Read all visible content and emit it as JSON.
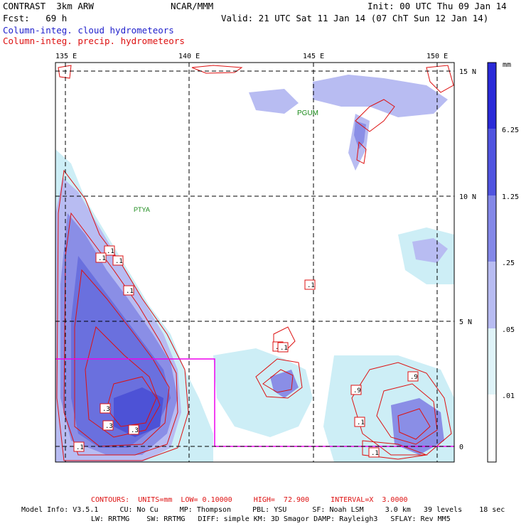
{
  "header": {
    "model": "CONTRAST  3km ARW",
    "org": "NCAR/MMM",
    "init": "Init: 00 UTC Thu 09 Jan 14",
    "fcst": "Fcst:   69 h",
    "valid": "Valid: 21 UTC Sat 11 Jan 14 (07 ChT Sun 12 Jan 14)",
    "field_blue": "Column-integ. cloud hydrometeors",
    "field_red": "Column-integ. precip. hydrometeors"
  },
  "map": {
    "lon_labels": [
      "135 E",
      "140 E",
      "145 E",
      "150 E"
    ],
    "lat_labels": [
      "15 N",
      "10 N",
      "5 N",
      "0"
    ],
    "stations": [
      "PGUM",
      "PTYA"
    ],
    "contour_labels": [
      ".1",
      ".1",
      ".1",
      ".1",
      ".1",
      ".1",
      ".9",
      ".3",
      ".3",
      ".3",
      ".1",
      ".9",
      ".1",
      ".1",
      ".1"
    ],
    "colors": {
      "contour": "#dd1111",
      "box": "#ee00ee",
      "cloud_light": "#cdeef6",
      "cloud_mid": "#b8bcf2",
      "cloud_dark": "#8a8ee6",
      "cloud_deep": "#4d52d6",
      "station": "#1a8a1a"
    }
  },
  "colorbar": {
    "unit": "mm",
    "ticks": [
      "6.25",
      "1.25",
      ".25",
      ".05",
      ".01"
    ],
    "colors": [
      "#2a2ad8",
      "#5054e0",
      "#8488e8",
      "#b8bcf2",
      "#dff3f8",
      "#ffffff"
    ]
  },
  "footer": {
    "contours": "CONTOURS:  UNITS=mm  LOW= 0.10000     HIGH=  72.900     INTERVAL=X  3.0000",
    "info1": "Model Info: V3.5.1     CU: No Cu     MP: Thompson     PBL: YSU      SF: Noah LSM     3.0 km   39 levels    18 sec",
    "info2": "LW: RRTMG    SW: RRTMG   DIFF: simple KM: 3D Smagor DAMP: Rayleigh3   SFLAY: Rev MM5"
  }
}
